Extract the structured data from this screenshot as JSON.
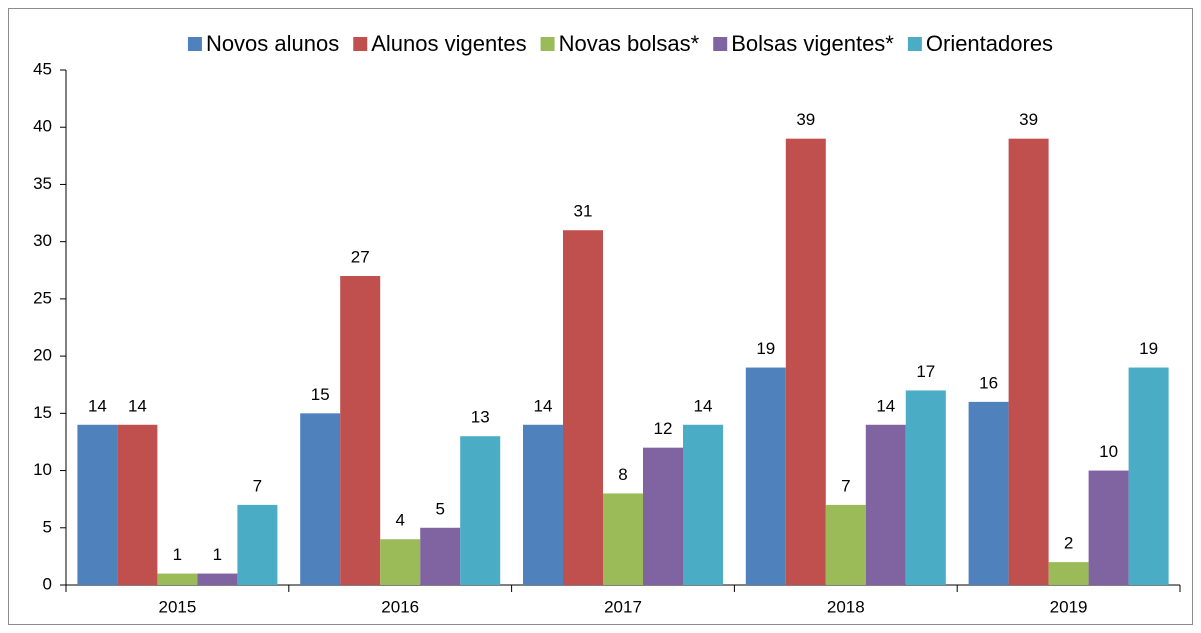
{
  "chart_data": {
    "type": "bar",
    "categories": [
      "2015",
      "2016",
      "2017",
      "2018",
      "2019"
    ],
    "series": [
      {
        "name": "Novos alunos",
        "color": "#4f81bd",
        "values": [
          14,
          15,
          14,
          19,
          16
        ]
      },
      {
        "name": "Alunos vigentes",
        "color": "#c0504d",
        "values": [
          14,
          27,
          31,
          39,
          39
        ]
      },
      {
        "name": "Novas bolsas*",
        "color": "#9bbb59",
        "values": [
          1,
          4,
          8,
          7,
          2
        ]
      },
      {
        "name": "Bolsas vigentes*",
        "color": "#8064a2",
        "values": [
          1,
          5,
          12,
          14,
          10
        ]
      },
      {
        "name": "Orientadores",
        "color": "#4bacc6",
        "values": [
          7,
          13,
          14,
          17,
          19
        ]
      }
    ],
    "ylim": [
      0,
      45
    ],
    "yticks": [
      0,
      5,
      10,
      15,
      20,
      25,
      30,
      35,
      40,
      45
    ],
    "legend": "top",
    "grid": false
  }
}
